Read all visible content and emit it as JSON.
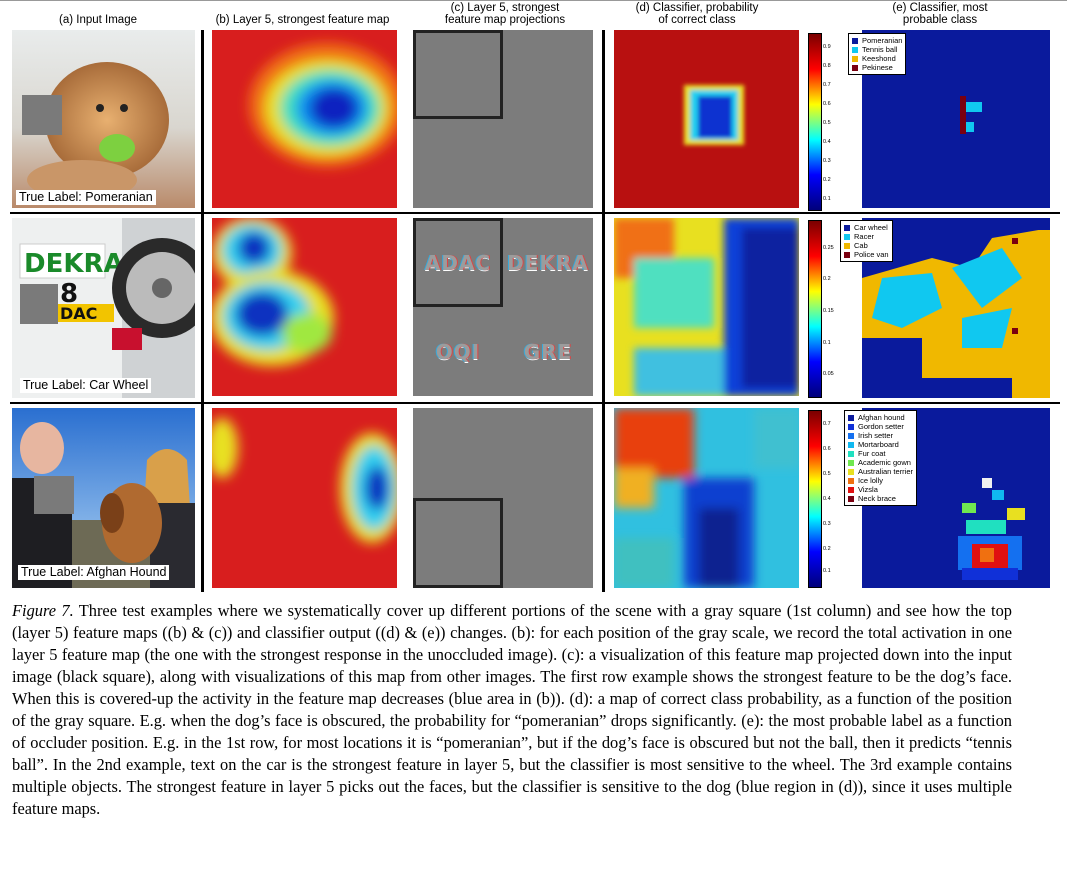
{
  "headers": {
    "a": "(a) Input Image",
    "b": "(b) Layer 5, strongest feature map",
    "c": [
      "(c) Layer 5, strongest",
      "feature map projections"
    ],
    "d": [
      "(d) Classifier, probability",
      "of correct class"
    ],
    "e": [
      "(e) Classifier, most",
      "probable class"
    ]
  },
  "rows": [
    {
      "true_label": "True Label: Pomeranian",
      "proj_glyphs": [
        "",
        "",
        "",
        ""
      ],
      "colorbar_ticks": [
        "0.9",
        "0.8",
        "0.7",
        "0.6",
        "0.5",
        "0.4",
        "0.3",
        "0.2",
        "0.1"
      ],
      "legend": [
        {
          "label": "Pomeranian",
          "color": "#0a1a9c"
        },
        {
          "label": "Tennis ball",
          "color": "#10c8f0"
        },
        {
          "label": "Keeshond",
          "color": "#f0b800"
        },
        {
          "label": "Pekinese",
          "color": "#7a0010"
        }
      ]
    },
    {
      "true_label": "True Label: Car Wheel",
      "proj_glyphs": [
        "ADAC",
        "DEKRA",
        "OQI",
        "GRE"
      ],
      "colorbar_ticks": [
        "0.25",
        "0.2",
        "0.15",
        "0.1",
        "0.05"
      ],
      "legend": [
        {
          "label": "Car wheel",
          "color": "#0a1a9c"
        },
        {
          "label": "Racer",
          "color": "#10c8f0"
        },
        {
          "label": "Cab",
          "color": "#f0b800"
        },
        {
          "label": "Police van",
          "color": "#7a0010"
        }
      ]
    },
    {
      "true_label": "True Label: Afghan Hound",
      "proj_glyphs": [
        "",
        "",
        "",
        ""
      ],
      "colorbar_ticks": [
        "0.7",
        "0.6",
        "0.5",
        "0.4",
        "0.3",
        "0.2",
        "0.1"
      ],
      "legend": [
        {
          "label": "Afghan hound",
          "color": "#0a1a9c"
        },
        {
          "label": "Gordon setter",
          "color": "#1030d8"
        },
        {
          "label": "Irish setter",
          "color": "#1470f0"
        },
        {
          "label": "Mortarboard",
          "color": "#10b8f0"
        },
        {
          "label": "Fur coat",
          "color": "#20e0c0"
        },
        {
          "label": "Academic gown",
          "color": "#70e850"
        },
        {
          "label": "Australian terrier",
          "color": "#e8e020"
        },
        {
          "label": "Ice lolly",
          "color": "#f07010"
        },
        {
          "label": "Vizsla",
          "color": "#e01010"
        },
        {
          "label": "Neck brace",
          "color": "#7a0010"
        }
      ]
    }
  ],
  "caption": {
    "fig_label": "Figure 7.",
    "text": "Three test examples where we systematically cover up different portions of the scene with a gray square (1st column) and see how the top (layer 5) feature maps ((b) & (c)) and classifier output ((d) & (e)) changes. (b): for each position of the gray scale, we record the total activation in one layer 5 feature map (the one with the strongest response in the unoccluded image). (c): a visualization of this feature map projected down into the input image (black square), along with visualizations of this map from other images. The first row example shows the strongest feature to be the dog’s face. When this is covered-up the activity in the feature map decreases (blue area in (b)). (d): a map of correct class probability, as a function of the position of the gray square. E.g. when the dog’s face is obscured, the probability for “pomeranian” drops significantly. (e): the most probable label as a function of occluder position. E.g. in the 1st row, for most locations it is “pomeranian”, but if the dog’s face is obscured but not the ball, then it predicts “tennis ball”. In the 2nd example, text on the car is the strongest feature in layer 5, but the classifier is most sensitive to the wheel. The 3rd example contains multiple objects. The strongest feature in layer 5 picks out the faces, but the classifier is sensitive to the dog (blue region in (d)), since it uses multiple feature maps."
  }
}
